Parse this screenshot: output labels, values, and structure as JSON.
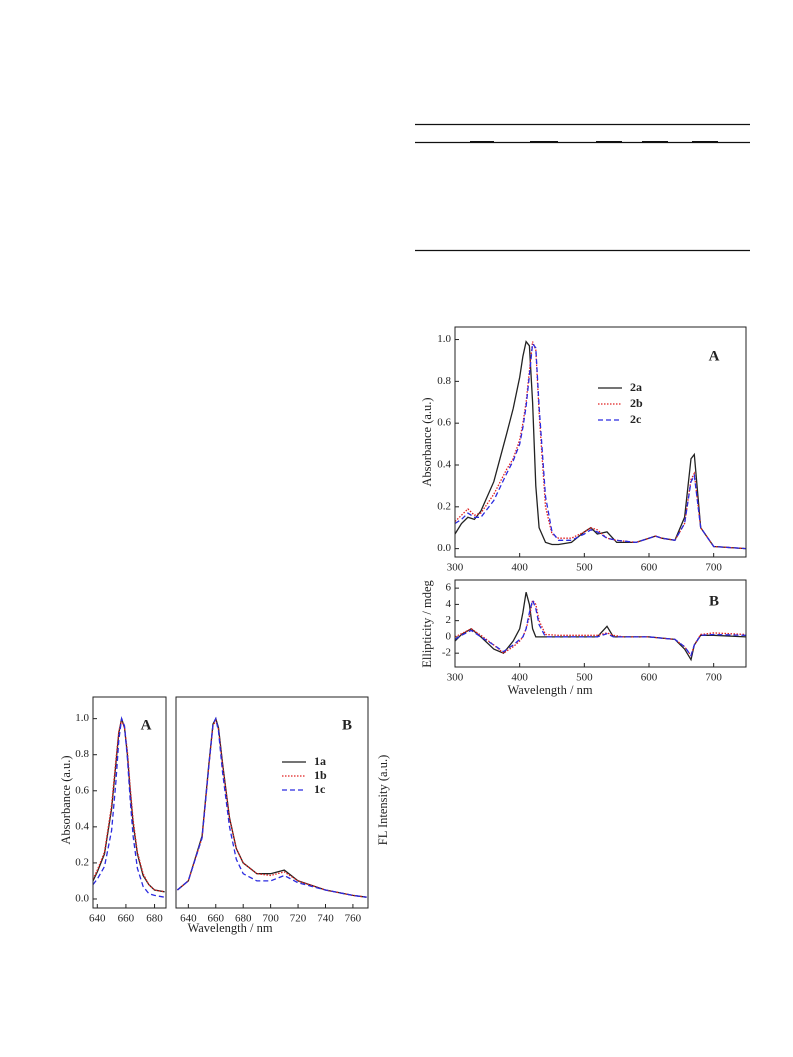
{
  "chart_data": [
    {
      "type": "line",
      "y_label": "Absorbance (a.u.)",
      "panel": "A",
      "x": [
        300,
        310,
        320,
        330,
        340,
        360,
        380,
        390,
        400,
        405,
        410,
        415,
        420,
        425,
        430,
        440,
        450,
        460,
        480,
        500,
        510,
        520,
        535,
        550,
        580,
        600,
        610,
        620,
        640,
        655,
        665,
        670,
        680,
        700,
        750
      ],
      "xlim": [
        300,
        750
      ],
      "xticks": [
        300,
        400,
        500,
        600,
        700
      ],
      "ylim": [
        -0.04,
        1.06
      ],
      "yticks": [
        {
          "value": 0,
          "label": "0.0"
        },
        0.2,
        0.4,
        0.6,
        0.8,
        {
          "value": 1,
          "label": "1.0"
        }
      ],
      "series": [
        {
          "name": "2a",
          "color": "#222222",
          "style": "solid",
          "values": [
            0.07,
            0.12,
            0.15,
            0.14,
            0.18,
            0.32,
            0.55,
            0.67,
            0.82,
            0.92,
            0.99,
            0.97,
            0.7,
            0.3,
            0.1,
            0.03,
            0.02,
            0.02,
            0.03,
            0.08,
            0.1,
            0.07,
            0.08,
            0.03,
            0.03,
            0.05,
            0.06,
            0.05,
            0.04,
            0.15,
            0.43,
            0.45,
            0.1,
            0.01,
            0.0
          ]
        },
        {
          "name": "2b",
          "color": "#e02020",
          "style": "dotted",
          "values": [
            0.13,
            0.16,
            0.19,
            0.16,
            0.17,
            0.26,
            0.38,
            0.43,
            0.52,
            0.6,
            0.7,
            0.85,
            0.99,
            0.95,
            0.65,
            0.2,
            0.07,
            0.05,
            0.05,
            0.08,
            0.1,
            0.09,
            0.05,
            0.04,
            0.03,
            0.05,
            0.06,
            0.05,
            0.04,
            0.12,
            0.33,
            0.36,
            0.1,
            0.01,
            0.0
          ]
        },
        {
          "name": "2c",
          "color": "#2a2ae0",
          "style": "dashed",
          "values": [
            0.12,
            0.14,
            0.17,
            0.15,
            0.15,
            0.23,
            0.36,
            0.42,
            0.5,
            0.58,
            0.68,
            0.83,
            0.98,
            0.96,
            0.68,
            0.25,
            0.08,
            0.04,
            0.04,
            0.07,
            0.09,
            0.08,
            0.05,
            0.04,
            0.03,
            0.05,
            0.06,
            0.05,
            0.04,
            0.12,
            0.32,
            0.35,
            0.1,
            0.01,
            0.0
          ]
        }
      ]
    },
    {
      "type": "line",
      "y_label": "Ellipticity / mdeg",
      "x_label": "Wavelength / nm",
      "panel": "B",
      "x": [
        300,
        310,
        325,
        340,
        360,
        375,
        390,
        400,
        405,
        410,
        415,
        420,
        425,
        430,
        440,
        460,
        500,
        520,
        535,
        545,
        560,
        600,
        640,
        655,
        665,
        670,
        680,
        700,
        750
      ],
      "xlim": [
        300,
        750
      ],
      "xticks": [
        300,
        400,
        500,
        600,
        700
      ],
      "ylim": [
        -3.7,
        7
      ],
      "yticks": [
        -2,
        0,
        2,
        4,
        6
      ],
      "series": [
        {
          "color": "#222222",
          "style": "solid",
          "values": [
            -0.5,
            0.3,
            1.0,
            0,
            -1.5,
            -2,
            -0.5,
            1,
            3,
            5.5,
            4,
            1,
            0,
            0,
            0,
            0,
            0,
            0,
            1.3,
            0,
            0,
            0,
            -0.3,
            -1.5,
            -2.8,
            -1,
            0.2,
            0.2,
            0
          ]
        },
        {
          "color": "#e02020",
          "style": "dotted",
          "values": [
            0,
            0.4,
            1,
            0.2,
            -1,
            -2,
            -1.2,
            -0.5,
            0,
            1,
            2.5,
            4.5,
            4,
            2,
            0.3,
            0.2,
            0.2,
            0.2,
            0.5,
            0.2,
            0,
            0,
            -0.3,
            -1.2,
            -2.3,
            -1,
            0.3,
            0.5,
            0.3
          ]
        },
        {
          "color": "#2a2ae0",
          "style": "dashed",
          "values": [
            -0.3,
            0.2,
            0.8,
            0,
            -1,
            -1.8,
            -1,
            -0.3,
            0,
            1,
            3,
            4.5,
            3.5,
            1.5,
            0,
            0,
            0,
            0,
            0.4,
            0,
            0,
            0,
            -0.3,
            -1.2,
            -2.3,
            -1,
            0.2,
            0.3,
            0.2
          ]
        }
      ]
    },
    {
      "type": "line",
      "y_label": "Absorbance (a.u.)",
      "panel": "A",
      "x": [
        637,
        640,
        645,
        650,
        653,
        655,
        657,
        659,
        661,
        663,
        665,
        668,
        672,
        676,
        680,
        687
      ],
      "xlim": [
        637,
        688
      ],
      "xticks": [
        640,
        660,
        680
      ],
      "ylim": [
        -0.05,
        1.12
      ],
      "yticks": [
        {
          "value": 0,
          "label": "0.0"
        },
        0.2,
        0.4,
        0.6,
        0.8,
        {
          "value": 1,
          "label": "1.0"
        }
      ],
      "series": [
        {
          "color": "#222222",
          "style": "solid",
          "values": [
            0.1,
            0.15,
            0.25,
            0.5,
            0.75,
            0.92,
            1.0,
            0.95,
            0.8,
            0.6,
            0.42,
            0.25,
            0.13,
            0.08,
            0.05,
            0.04
          ]
        },
        {
          "color": "#e02020",
          "style": "dotted",
          "values": [
            0.11,
            0.16,
            0.26,
            0.52,
            0.77,
            0.93,
            0.99,
            0.95,
            0.82,
            0.62,
            0.44,
            0.26,
            0.14,
            0.08,
            0.05,
            0.04
          ]
        },
        {
          "color": "#2a2ae0",
          "style": "dashed",
          "values": [
            0.08,
            0.11,
            0.18,
            0.38,
            0.65,
            0.88,
            1.0,
            0.96,
            0.78,
            0.55,
            0.35,
            0.17,
            0.07,
            0.03,
            0.02,
            0.01
          ]
        }
      ]
    },
    {
      "type": "line",
      "y_label": "FL Intensity (a.u.)",
      "x_label": "Wavelength / nm",
      "panel": "B",
      "x": [
        632,
        640,
        650,
        655,
        658,
        660,
        662,
        665,
        670,
        675,
        680,
        690,
        700,
        710,
        720,
        740,
        760,
        770
      ],
      "xlim": [
        631,
        771
      ],
      "xticks": [
        640,
        660,
        680,
        700,
        720,
        740,
        760
      ],
      "ylim": [
        -0.05,
        1.12
      ],
      "series": [
        {
          "name": "1a",
          "color": "#222222",
          "style": "solid",
          "values": [
            0.05,
            0.1,
            0.35,
            0.75,
            0.97,
            1.0,
            0.95,
            0.75,
            0.45,
            0.28,
            0.2,
            0.14,
            0.14,
            0.16,
            0.1,
            0.05,
            0.02,
            0.01
          ]
        },
        {
          "name": "1b",
          "color": "#e02020",
          "style": "dotted",
          "values": [
            0.05,
            0.1,
            0.34,
            0.74,
            0.96,
            0.99,
            0.94,
            0.74,
            0.45,
            0.28,
            0.2,
            0.14,
            0.13,
            0.15,
            0.1,
            0.05,
            0.02,
            0.01
          ]
        },
        {
          "name": "1c",
          "color": "#2a2ae0",
          "style": "dashed",
          "values": [
            0.05,
            0.1,
            0.34,
            0.74,
            0.97,
            1.0,
            0.93,
            0.7,
            0.4,
            0.22,
            0.14,
            0.1,
            0.1,
            0.13,
            0.09,
            0.05,
            0.02,
            0.01
          ]
        }
      ]
    }
  ]
}
